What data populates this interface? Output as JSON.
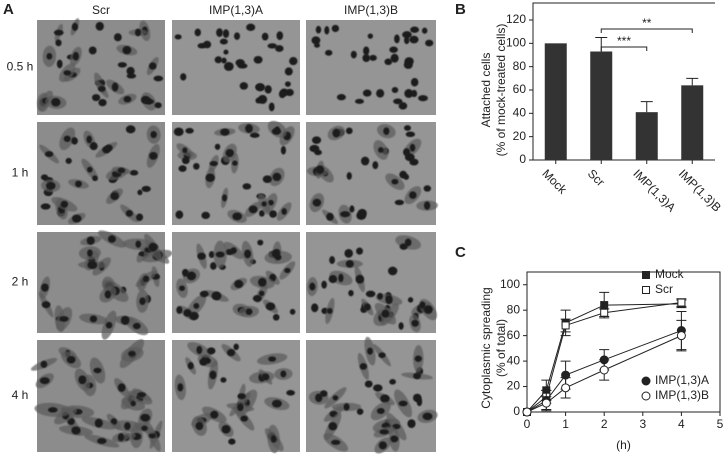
{
  "figure": {
    "panel_labels": [
      "A",
      "B",
      "C"
    ],
    "columns": [
      "Scr",
      "IMP(1,3)A",
      "IMP(1,3)B"
    ],
    "rows": [
      "0.5 h",
      "1 h",
      "2 h",
      "4 h"
    ]
  },
  "chart_data": [
    {
      "type": "bar",
      "ylabel": [
        "Attached cells",
        "(% of mock-treated cells)"
      ],
      "categories": [
        "Mock",
        "Scr",
        "IMP(1,3)A",
        "IMP(1,3)B"
      ],
      "values": [
        100,
        93,
        41,
        64
      ],
      "errors": [
        0,
        12,
        9,
        6
      ],
      "color": "#333333",
      "ylim": [
        0,
        120
      ],
      "yticks": [
        0,
        20,
        40,
        60,
        80,
        100,
        120
      ],
      "significance": [
        {
          "from": 1,
          "to": 2,
          "label": "***"
        },
        {
          "from": 1,
          "to": 3,
          "label": "**"
        }
      ]
    },
    {
      "type": "line",
      "xlabel": "(h)",
      "ylabel": [
        "Cytoplasmic spreading",
        "(% of total)"
      ],
      "x": [
        0,
        0.5,
        1,
        2,
        4
      ],
      "series": [
        {
          "name": "Mock",
          "marker": "square",
          "filled": true,
          "legend": "upper",
          "values": [
            0,
            17,
            70,
            84,
            85
          ],
          "errors": [
            0,
            8,
            10,
            10,
            3
          ]
        },
        {
          "name": "Scr",
          "marker": "square",
          "filled": false,
          "legend": "upper",
          "values": [
            0,
            12,
            68,
            78,
            86
          ],
          "errors": [
            0,
            5,
            5,
            3,
            3
          ]
        },
        {
          "name": "IMP(1,3)A",
          "marker": "circle",
          "filled": true,
          "legend": "lower",
          "values": [
            0,
            9,
            29,
            41,
            64
          ],
          "errors": [
            0,
            8,
            11,
            8,
            15
          ]
        },
        {
          "name": "IMP(1,3)B",
          "marker": "circle",
          "filled": false,
          "legend": "lower",
          "values": [
            0,
            7,
            19,
            33,
            60
          ],
          "errors": [
            0,
            5,
            8,
            8,
            12
          ]
        }
      ],
      "color": "#222222",
      "xlim": [
        0,
        5
      ],
      "xticks": [
        0,
        1,
        2,
        3,
        4,
        5
      ],
      "ylim": [
        0,
        110
      ],
      "yticks": [
        0,
        20,
        40,
        60,
        80,
        100
      ]
    }
  ]
}
